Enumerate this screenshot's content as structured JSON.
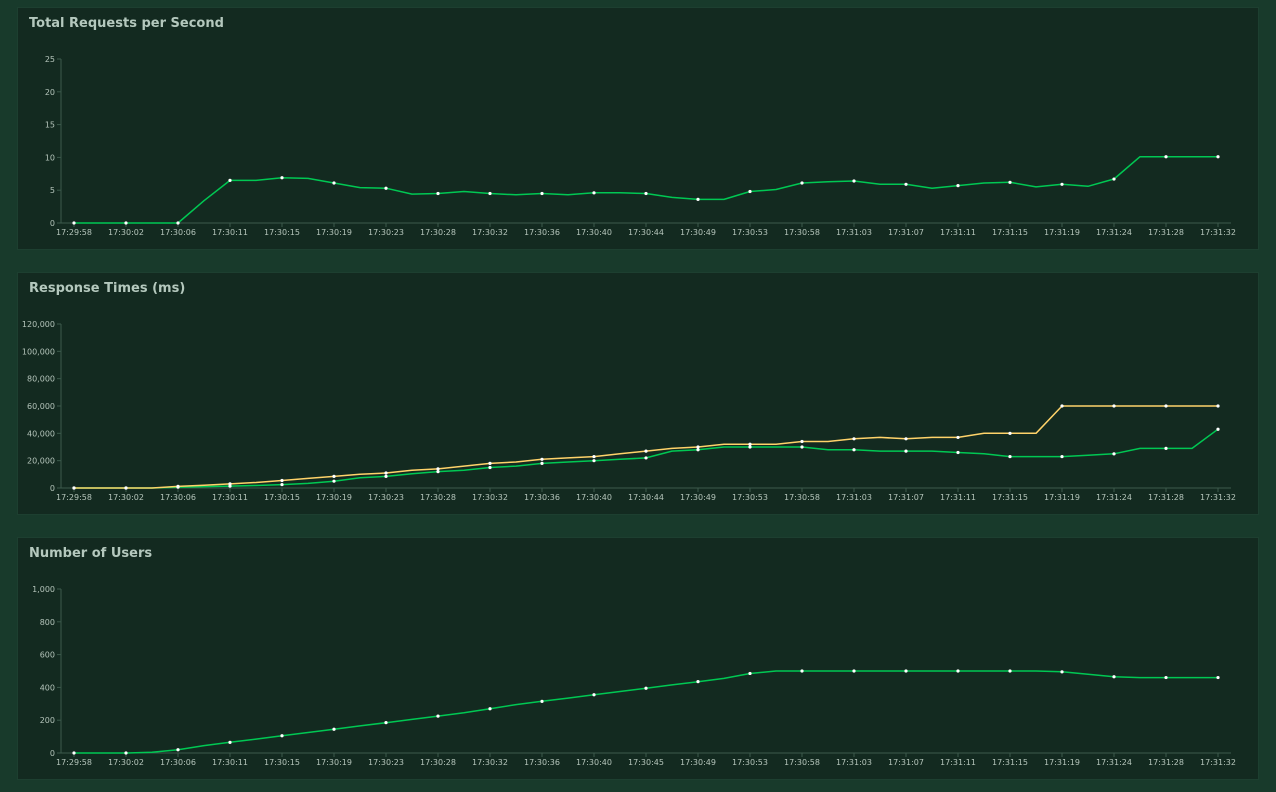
{
  "colors": {
    "green": "#00c853",
    "yellow": "#ffd36a",
    "marker": "#ffffff"
  },
  "chart_data": [
    {
      "type": "line",
      "title": "Total Requests per Second",
      "x": [
        "17:29:58",
        "17:30:00",
        "17:30:02",
        "17:30:04",
        "17:30:06",
        "17:30:08",
        "17:30:11",
        "17:30:13",
        "17:30:15",
        "17:30:17",
        "17:30:19",
        "17:30:21",
        "17:30:23",
        "17:30:26",
        "17:30:28",
        "17:30:30",
        "17:30:32",
        "17:30:34",
        "17:30:36",
        "17:30:38",
        "17:30:40",
        "17:30:42",
        "17:30:44",
        "17:30:47",
        "17:30:49",
        "17:30:51",
        "17:30:53",
        "17:30:55",
        "17:30:58",
        "17:31:00",
        "17:31:03",
        "17:31:05",
        "17:31:07",
        "17:31:09",
        "17:31:11",
        "17:31:13",
        "17:31:15",
        "17:31:17",
        "17:31:19",
        "17:31:21",
        "17:31:24",
        "17:31:26",
        "17:31:28",
        "17:31:30",
        "17:31:32"
      ],
      "xticks": [
        "17:29:58",
        "17:30:02",
        "17:30:06",
        "17:30:11",
        "17:30:15",
        "17:30:19",
        "17:30:23",
        "17:30:28",
        "17:30:32",
        "17:30:36",
        "17:30:40",
        "17:30:44",
        "17:30:49",
        "17:30:53",
        "17:30:58",
        "17:31:03",
        "17:31:07",
        "17:31:11",
        "17:31:15",
        "17:31:19",
        "17:31:24",
        "17:31:28",
        "17:31:32"
      ],
      "ylim": [
        0,
        25
      ],
      "yticks": [
        0,
        5,
        10,
        15,
        20,
        25
      ],
      "ytick_labels": [
        "0",
        "5",
        "10",
        "15",
        "20",
        "25"
      ],
      "grid": false,
      "series": [
        {
          "color": "#00c853",
          "values": [
            0,
            0,
            0,
            0,
            0,
            3.4,
            6.5,
            6.5,
            6.9,
            6.8,
            6.1,
            5.4,
            5.3,
            4.4,
            4.5,
            4.8,
            4.5,
            4.3,
            4.5,
            4.3,
            4.6,
            4.6,
            4.5,
            3.9,
            3.6,
            3.6,
            4.8,
            5.1,
            6.1,
            6.3,
            6.4,
            5.9,
            5.9,
            5.3,
            5.7,
            6.1,
            6.2,
            5.5,
            5.9,
            5.6,
            6.7,
            10.1,
            10.1,
            10.1,
            10.1
          ]
        }
      ]
    },
    {
      "type": "line",
      "title": "Response Times (ms)",
      "x": [
        "17:29:58",
        "17:30:00",
        "17:30:02",
        "17:30:04",
        "17:30:06",
        "17:30:08",
        "17:30:11",
        "17:30:13",
        "17:30:15",
        "17:30:17",
        "17:30:19",
        "17:30:21",
        "17:30:23",
        "17:30:26",
        "17:30:28",
        "17:30:30",
        "17:30:32",
        "17:30:34",
        "17:30:36",
        "17:30:38",
        "17:30:40",
        "17:30:42",
        "17:30:44",
        "17:30:47",
        "17:30:49",
        "17:30:51",
        "17:30:53",
        "17:30:55",
        "17:30:58",
        "17:31:00",
        "17:31:03",
        "17:31:05",
        "17:31:07",
        "17:31:09",
        "17:31:11",
        "17:31:13",
        "17:31:15",
        "17:31:17",
        "17:31:19",
        "17:31:21",
        "17:31:24",
        "17:31:26",
        "17:31:28",
        "17:31:30",
        "17:31:32"
      ],
      "xticks": [
        "17:29:58",
        "17:30:02",
        "17:30:06",
        "17:30:11",
        "17:30:15",
        "17:30:19",
        "17:30:23",
        "17:30:28",
        "17:30:32",
        "17:30:36",
        "17:30:40",
        "17:30:44",
        "17:30:49",
        "17:30:53",
        "17:30:58",
        "17:31:03",
        "17:31:07",
        "17:31:11",
        "17:31:15",
        "17:31:19",
        "17:31:24",
        "17:31:28",
        "17:31:32"
      ],
      "ylim": [
        0,
        120000
      ],
      "yticks": [
        0,
        20000,
        40000,
        60000,
        80000,
        100000,
        120000
      ],
      "ytick_labels": [
        "0",
        "20,000",
        "40,000",
        "60,000",
        "80,000",
        "100,000",
        "120,000"
      ],
      "grid": false,
      "series": [
        {
          "color": "#00c853",
          "values": [
            0,
            0,
            0,
            0,
            600,
            1000,
            1400,
            1800,
            2500,
            3400,
            5000,
            7500,
            8500,
            10500,
            12000,
            13000,
            15000,
            16000,
            18000,
            19000,
            20000,
            21000,
            22000,
            27000,
            28000,
            30000,
            30000,
            30000,
            30000,
            28000,
            28000,
            27000,
            27000,
            27000,
            26000,
            25000,
            23000,
            23000,
            23000,
            24000,
            25000,
            29000,
            29000,
            29000,
            43000
          ]
        },
        {
          "color": "#ffd36a",
          "values": [
            0,
            0,
            0,
            0,
            1200,
            2000,
            3000,
            4000,
            5500,
            7000,
            8500,
            10000,
            11000,
            13000,
            14000,
            16000,
            18000,
            19000,
            21000,
            22000,
            23000,
            25000,
            27000,
            29000,
            30000,
            32000,
            32000,
            32000,
            34000,
            34000,
            36000,
            37000,
            36000,
            37000,
            37000,
            40000,
            40000,
            40000,
            60000,
            60000,
            60000,
            60000,
            60000,
            60000,
            60000
          ]
        }
      ]
    },
    {
      "type": "line",
      "title": "Number of Users",
      "x": [
        "17:29:58",
        "17:30:00",
        "17:30:02",
        "17:30:04",
        "17:30:06",
        "17:30:08",
        "17:30:11",
        "17:30:13",
        "17:30:15",
        "17:30:17",
        "17:30:19",
        "17:30:21",
        "17:30:23",
        "17:30:26",
        "17:30:28",
        "17:30:30",
        "17:30:32",
        "17:30:34",
        "17:30:36",
        "17:30:38",
        "17:30:40",
        "17:30:42",
        "17:30:45",
        "17:30:47",
        "17:30:49",
        "17:30:51",
        "17:30:53",
        "17:30:55",
        "17:30:58",
        "17:31:00",
        "17:31:03",
        "17:31:05",
        "17:31:07",
        "17:31:09",
        "17:31:11",
        "17:31:13",
        "17:31:15",
        "17:31:17",
        "17:31:19",
        "17:31:21",
        "17:31:24",
        "17:31:26",
        "17:31:28",
        "17:31:30",
        "17:31:32"
      ],
      "xticks": [
        "17:29:58",
        "17:30:02",
        "17:30:06",
        "17:30:11",
        "17:30:15",
        "17:30:19",
        "17:30:23",
        "17:30:28",
        "17:30:32",
        "17:30:36",
        "17:30:40",
        "17:30:45",
        "17:30:49",
        "17:30:53",
        "17:30:58",
        "17:31:03",
        "17:31:07",
        "17:31:11",
        "17:31:15",
        "17:31:19",
        "17:31:24",
        "17:31:28",
        "17:31:32"
      ],
      "ylim": [
        0,
        1000
      ],
      "yticks": [
        0,
        200,
        400,
        600,
        800,
        1000
      ],
      "ytick_labels": [
        "0",
        "200",
        "400",
        "600",
        "800",
        "1,000"
      ],
      "grid": false,
      "series": [
        {
          "color": "#00c853",
          "values": [
            0,
            0,
            0,
            5,
            20,
            45,
            65,
            85,
            105,
            125,
            145,
            165,
            185,
            205,
            225,
            245,
            270,
            295,
            315,
            335,
            355,
            375,
            395,
            415,
            435,
            455,
            485,
            500,
            500,
            500,
            500,
            500,
            500,
            500,
            500,
            500,
            500,
            500,
            495,
            480,
            465,
            460,
            460,
            460,
            460
          ]
        }
      ]
    }
  ]
}
